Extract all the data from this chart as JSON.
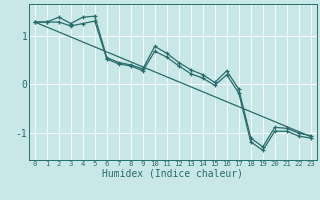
{
  "xlabel": "Humidex (Indice chaleur)",
  "bg_color": "#c8e8e8",
  "line_color": "#2a6b6b",
  "grid_color": "#b0d8d8",
  "xlim": [
    -0.5,
    23.5
  ],
  "ylim": [
    -1.55,
    1.65
  ],
  "yticks": [
    -1,
    0,
    1
  ],
  "xticks": [
    0,
    1,
    2,
    3,
    4,
    5,
    6,
    7,
    8,
    9,
    10,
    11,
    12,
    13,
    14,
    15,
    16,
    17,
    18,
    19,
    20,
    21,
    22,
    23
  ],
  "line1_y": [
    1.28,
    1.28,
    1.38,
    1.25,
    1.38,
    1.4,
    0.55,
    0.45,
    0.4,
    0.32,
    0.78,
    0.64,
    0.45,
    0.3,
    0.2,
    0.04,
    0.28,
    -0.1,
    -1.1,
    -1.28,
    -0.88,
    -0.9,
    -1.0,
    -1.05
  ],
  "line2_y": [
    1.28,
    1.28,
    1.28,
    1.2,
    1.25,
    1.3,
    0.52,
    0.42,
    0.38,
    0.28,
    0.68,
    0.56,
    0.38,
    0.22,
    0.13,
    -0.02,
    0.2,
    -0.18,
    -1.18,
    -1.35,
    -0.96,
    -0.96,
    -1.06,
    -1.1
  ],
  "line3_x": [
    0,
    23
  ],
  "line3_y": [
    1.28,
    -1.07
  ]
}
